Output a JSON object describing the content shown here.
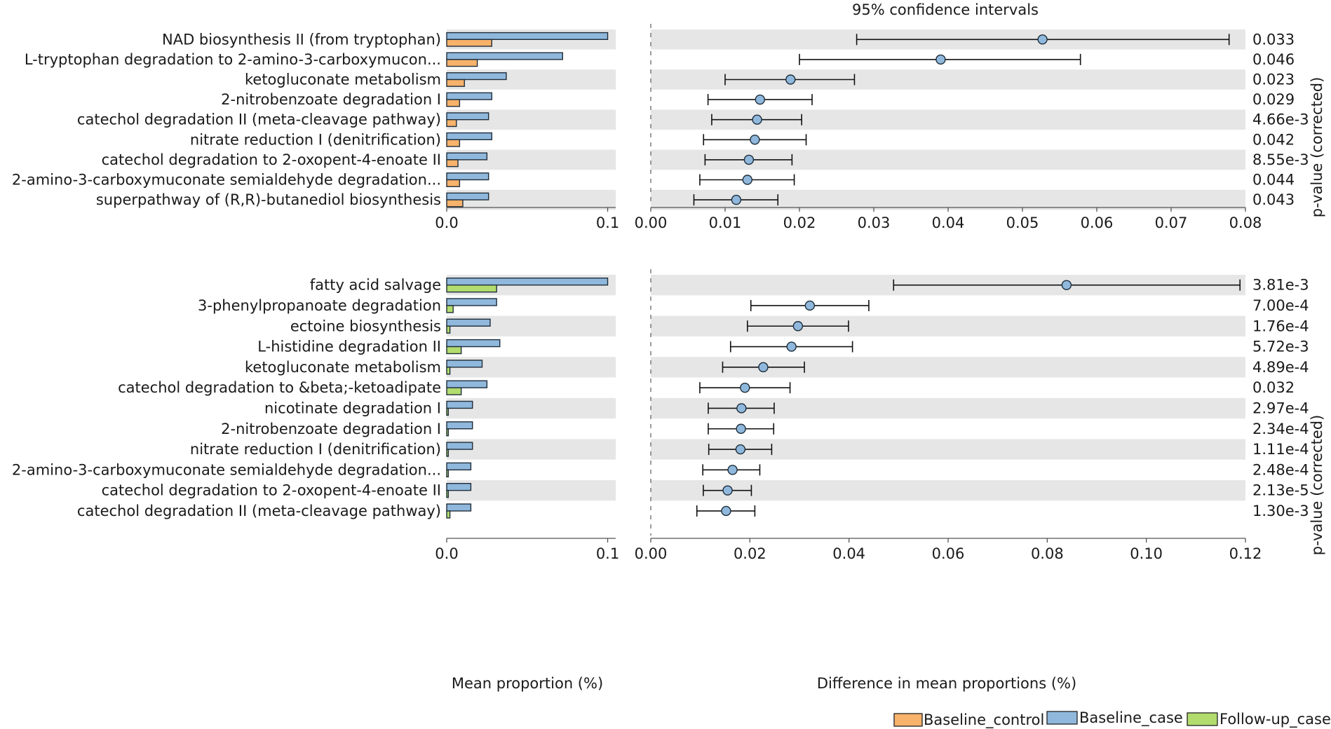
{
  "colors": {
    "baseline_control": "#f7b26b",
    "baseline_case": "#8fb8dc",
    "follow_up_case": "#b2dc6d",
    "row_shade": "#e6e6e6",
    "axis": "#555555"
  },
  "figure": {
    "ci_title": "95% confidence intervals",
    "pvalue_label": "p-value (corrected)",
    "bar_xlabel": "Mean proportion (%)",
    "ci_xlabel": "Difference in mean proportions (%)"
  },
  "legend": [
    {
      "label": "Baseline_control",
      "color": "#f7b26b"
    },
    {
      "label": "Baseline_case",
      "color": "#8fb8dc"
    },
    {
      "label": "Follow-up_case",
      "color": "#b2dc6d"
    }
  ],
  "chart_data": [
    {
      "type": "bar",
      "panel": "top-left",
      "title": "",
      "xlabel": "",
      "xlim": [
        0,
        0.105
      ],
      "xticks": [
        {
          "v": 0,
          "label": "0.0"
        },
        {
          "v": 0.1,
          "label": "0.1"
        }
      ],
      "categories": [
        "NAD biosynthesis II (from tryptophan)",
        "L-tryptophan degradation to 2-amino-3-carboxymucon...",
        "ketogluconate metabolism",
        "2-nitrobenzoate degradation I",
        "catechol degradation II (meta-cleavage pathway)",
        "nitrate reduction I (denitrification)",
        "catechol degradation to 2-oxopent-4-enoate II",
        "2-amino-3-carboxymuconate semialdehyde degradation...",
        "superpathway of (R,R)-butanediol biosynthesis"
      ],
      "series": [
        {
          "name": "Baseline_case",
          "values": [
            0.1,
            0.072,
            0.037,
            0.028,
            0.026,
            0.028,
            0.025,
            0.026,
            0.026
          ]
        },
        {
          "name": "Baseline_control",
          "values": [
            0.028,
            0.019,
            0.011,
            0.008,
            0.006,
            0.008,
            0.007,
            0.008,
            0.01
          ]
        }
      ]
    },
    {
      "type": "scatter",
      "panel": "top-right",
      "title": "95% confidence intervals",
      "xlabel": "",
      "xlim": [
        0,
        0.08
      ],
      "xticks": [
        0.0,
        0.01,
        0.02,
        0.03,
        0.04,
        0.05,
        0.06,
        0.07,
        0.08
      ],
      "tick_decimals": 2,
      "means": [
        0.0527,
        0.039,
        0.0188,
        0.0147,
        0.0143,
        0.014,
        0.0132,
        0.013,
        0.0115
      ],
      "ci_low": [
        0.0277,
        0.02,
        0.01,
        0.0077,
        0.0082,
        0.0071,
        0.0073,
        0.0066,
        0.0058
      ],
      "ci_high": [
        0.0778,
        0.0578,
        0.0274,
        0.0217,
        0.0203,
        0.0209,
        0.019,
        0.0193,
        0.0171
      ],
      "p_values": [
        "0.033",
        "0.046",
        "0.023",
        "0.029",
        "4.66e-3",
        "0.042",
        "8.55e-3",
        "0.044",
        "0.043"
      ]
    },
    {
      "type": "bar",
      "panel": "bottom-left",
      "title": "",
      "xlabel": "Mean proportion (%)",
      "xlim": [
        0,
        0.105
      ],
      "xticks": [
        {
          "v": 0,
          "label": "0.0"
        },
        {
          "v": 0.1,
          "label": "0.1"
        }
      ],
      "categories": [
        "fatty acid salvage",
        "3-phenylpropanoate degradation",
        "ectoine biosynthesis",
        "L-histidine degradation II",
        "ketogluconate metabolism",
        "catechol degradation to &beta;-ketoadipate",
        "nicotinate degradation I",
        "2-nitrobenzoate degradation I",
        "nitrate reduction I (denitrification)",
        "2-amino-3-carboxymuconate semialdehyde degradation...",
        "catechol degradation to 2-oxopent-4-enoate II",
        "catechol degradation II (meta-cleavage pathway)"
      ],
      "series": [
        {
          "name": "Baseline_case",
          "values": [
            0.1,
            0.031,
            0.027,
            0.033,
            0.022,
            0.025,
            0.016,
            0.016,
            0.016,
            0.015,
            0.015,
            0.015
          ]
        },
        {
          "name": "Follow-up_case",
          "values": [
            0.031,
            0.004,
            0.002,
            0.009,
            0.002,
            0.009,
            0.001,
            0.001,
            0.001,
            0.001,
            0.001,
            0.002
          ]
        }
      ]
    },
    {
      "type": "scatter",
      "panel": "bottom-right",
      "title": "",
      "xlabel": "Difference in mean proportions (%)",
      "xlim": [
        0,
        0.12
      ],
      "xticks": [
        0.0,
        0.02,
        0.04,
        0.06,
        0.08,
        0.1,
        0.12
      ],
      "tick_decimals": 2,
      "means": [
        0.0839,
        0.0321,
        0.0297,
        0.0284,
        0.0227,
        0.019,
        0.0183,
        0.0182,
        0.0181,
        0.0165,
        0.0155,
        0.0152
      ],
      "ci_low": [
        0.049,
        0.0202,
        0.0195,
        0.0161,
        0.0145,
        0.0099,
        0.0116,
        0.0116,
        0.0117,
        0.0105,
        0.0106,
        0.0093
      ],
      "ci_high": [
        0.1189,
        0.044,
        0.0399,
        0.0407,
        0.031,
        0.0281,
        0.0249,
        0.0248,
        0.0244,
        0.022,
        0.0203,
        0.021
      ],
      "p_values": [
        "3.81e-3",
        "7.00e-4",
        "1.76e-4",
        "5.72e-3",
        "4.89e-4",
        "0.032",
        "2.97e-4",
        "2.34e-4",
        "1.11e-4",
        "2.48e-4",
        "2.13e-5",
        "1.30e-3"
      ]
    }
  ]
}
